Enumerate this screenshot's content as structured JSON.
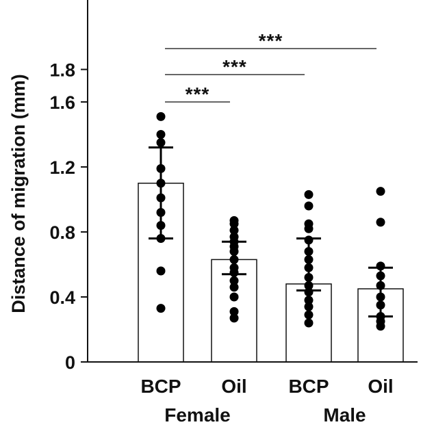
{
  "chart_data": {
    "type": "bar",
    "ylabel": "Distance of migration (mm)",
    "xlabel": "",
    "ylim": [
      0,
      1.9
    ],
    "yticks": [
      0,
      0.4,
      0.8,
      1.2,
      1.6,
      1.8
    ],
    "ytick_labels": [
      "0",
      "0.4",
      "0.8",
      "1.2",
      "1.6",
      "1.8"
    ],
    "grid": false,
    "categories": [
      "BCP",
      "Oil",
      "BCP",
      "Oil"
    ],
    "groups": [
      {
        "label": "Female",
        "categories": [
          0,
          1
        ]
      },
      {
        "label": "Male",
        "categories": [
          2,
          3
        ]
      }
    ],
    "values": [
      1.1,
      0.63,
      0.48,
      0.45
    ],
    "error_upper": [
      1.32,
      0.74,
      0.76,
      0.58
    ],
    "error_lower": [
      0.76,
      0.54,
      0.44,
      0.28
    ],
    "points": [
      [
        1.51,
        1.4,
        1.35,
        1.19,
        1.1,
        1.01,
        0.92,
        0.84,
        0.76,
        0.56,
        0.33
      ],
      [
        0.87,
        0.85,
        0.81,
        0.77,
        0.74,
        0.71,
        0.68,
        0.63,
        0.58,
        0.55,
        0.5,
        0.46,
        0.4,
        0.31,
        0.27
      ],
      [
        1.03,
        0.96,
        0.85,
        0.82,
        0.75,
        0.68,
        0.63,
        0.58,
        0.52,
        0.47,
        0.43,
        0.38,
        0.34,
        0.29,
        0.24
      ],
      [
        1.05,
        0.86,
        0.59,
        0.53,
        0.47,
        0.4,
        0.35,
        0.28,
        0.25,
        0.22
      ]
    ],
    "significance": [
      {
        "from": 0,
        "to": 1,
        "label": "***"
      },
      {
        "from": 0,
        "to": 2,
        "label": "***"
      },
      {
        "from": 0,
        "to": 3,
        "label": "***"
      }
    ]
  }
}
